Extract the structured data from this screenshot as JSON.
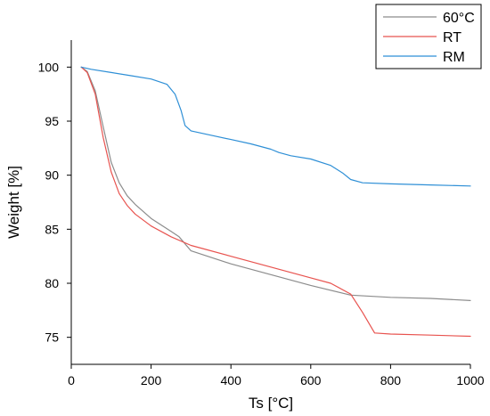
{
  "chart_data": {
    "type": "line",
    "title": "",
    "xlabel": "Ts [°C]",
    "ylabel": "Weight [%]",
    "xlim": [
      0,
      1000
    ],
    "ylim": [
      72.5,
      102.5
    ],
    "xticks": [
      0,
      200,
      400,
      600,
      800,
      1000
    ],
    "yticks": [
      75,
      80,
      85,
      90,
      95,
      100
    ],
    "grid": false,
    "legend_position": "top-right",
    "series": [
      {
        "name": "60°C",
        "color": "#8c8c8c",
        "x": [
          25,
          40,
          60,
          80,
          100,
          120,
          140,
          160,
          200,
          250,
          270,
          300,
          400,
          500,
          600,
          700,
          800,
          900,
          1000
        ],
        "y": [
          100,
          99.6,
          97.8,
          94.5,
          91.2,
          89.3,
          88.1,
          87.3,
          86.0,
          84.8,
          84.3,
          83.0,
          81.8,
          80.8,
          79.8,
          78.9,
          78.7,
          78.6,
          78.4
        ]
      },
      {
        "name": "RT",
        "color": "#e8534f",
        "x": [
          25,
          40,
          60,
          80,
          100,
          120,
          140,
          160,
          200,
          250,
          300,
          400,
          500,
          600,
          650,
          700,
          730,
          760,
          800,
          900,
          1000
        ],
        "y": [
          100,
          99.5,
          97.5,
          93.5,
          90.3,
          88.3,
          87.2,
          86.4,
          85.3,
          84.3,
          83.5,
          82.5,
          81.5,
          80.5,
          80.0,
          79.0,
          77.3,
          75.4,
          75.3,
          75.2,
          75.1
        ]
      },
      {
        "name": "RM",
        "color": "#2e8fd6",
        "x": [
          25,
          50,
          100,
          150,
          200,
          240,
          260,
          275,
          285,
          300,
          350,
          400,
          450,
          500,
          520,
          550,
          600,
          650,
          680,
          700,
          730,
          800,
          900,
          1000
        ],
        "y": [
          100,
          99.8,
          99.5,
          99.2,
          98.9,
          98.4,
          97.5,
          96.0,
          94.6,
          94.1,
          93.7,
          93.3,
          92.9,
          92.4,
          92.1,
          91.8,
          91.5,
          90.9,
          90.2,
          89.6,
          89.3,
          89.2,
          89.1,
          89.0
        ]
      }
    ]
  }
}
